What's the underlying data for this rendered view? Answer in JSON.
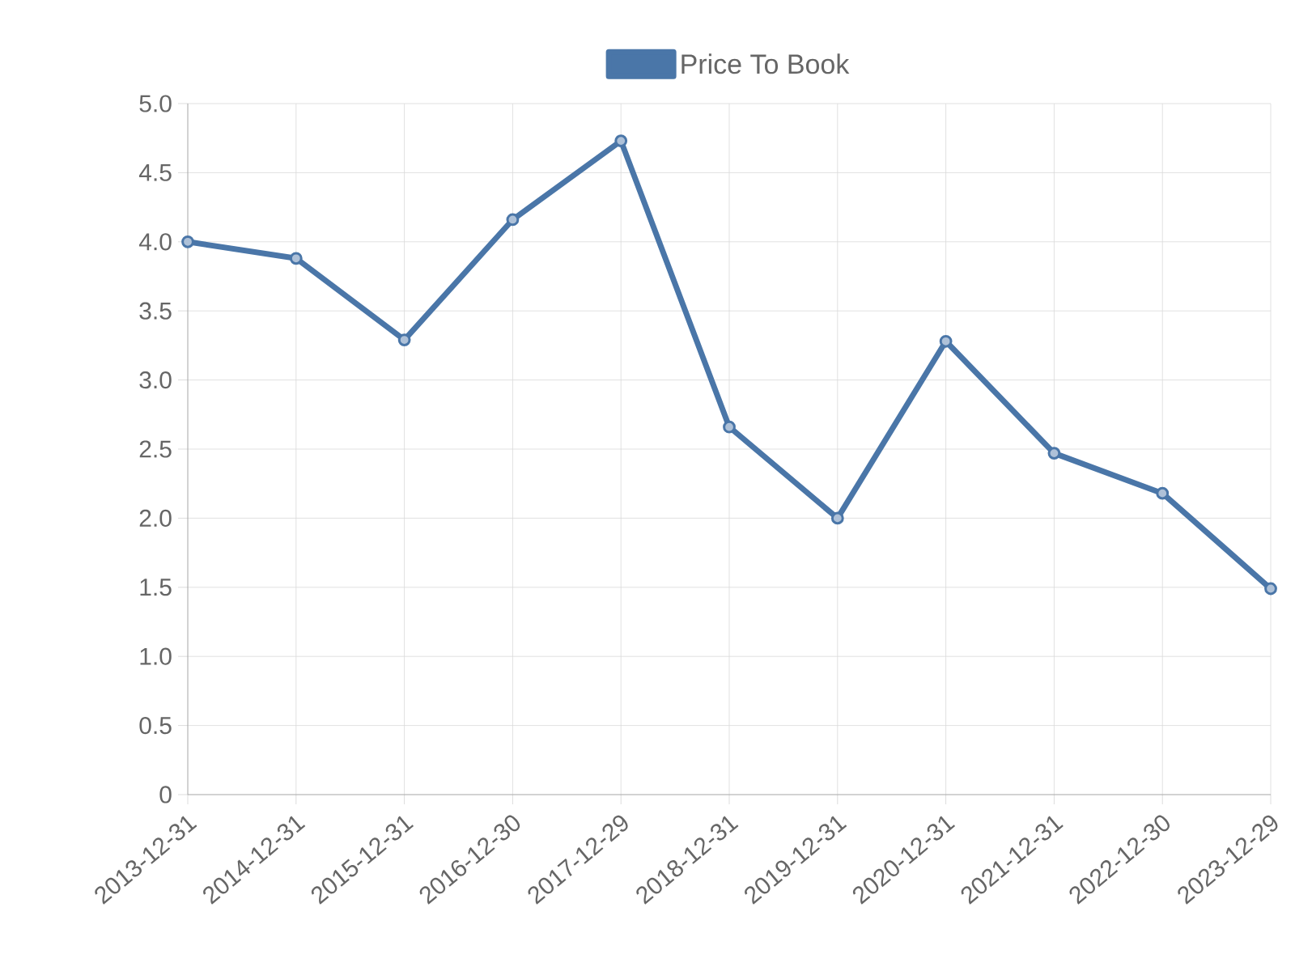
{
  "chart_data": {
    "type": "line",
    "categories": [
      "2013-12-31",
      "2014-12-31",
      "2015-12-31",
      "2016-12-30",
      "2017-12-29",
      "2018-12-31",
      "2019-12-31",
      "2020-12-31",
      "2021-12-31",
      "2022-12-30",
      "2023-12-29"
    ],
    "series": [
      {
        "name": "Price To Book",
        "color": "#4a76a8",
        "values": [
          4.0,
          3.88,
          3.29,
          4.16,
          4.73,
          2.66,
          2.0,
          3.28,
          2.47,
          2.18,
          1.49
        ]
      }
    ],
    "ylim": [
      0,
      5
    ],
    "yticks": [
      0,
      0.5,
      {
        "value": 1,
        "label": "1.0"
      },
      1.5,
      {
        "value": 2,
        "label": "2.0"
      },
      2.5,
      {
        "value": 3,
        "label": "3.0"
      },
      3.5,
      {
        "value": 4,
        "label": "4.0"
      },
      4.5,
      {
        "value": 5,
        "label": "5.0"
      }
    ],
    "grid": true,
    "legend": "top",
    "marker": "circle",
    "line_style": "solid"
  }
}
